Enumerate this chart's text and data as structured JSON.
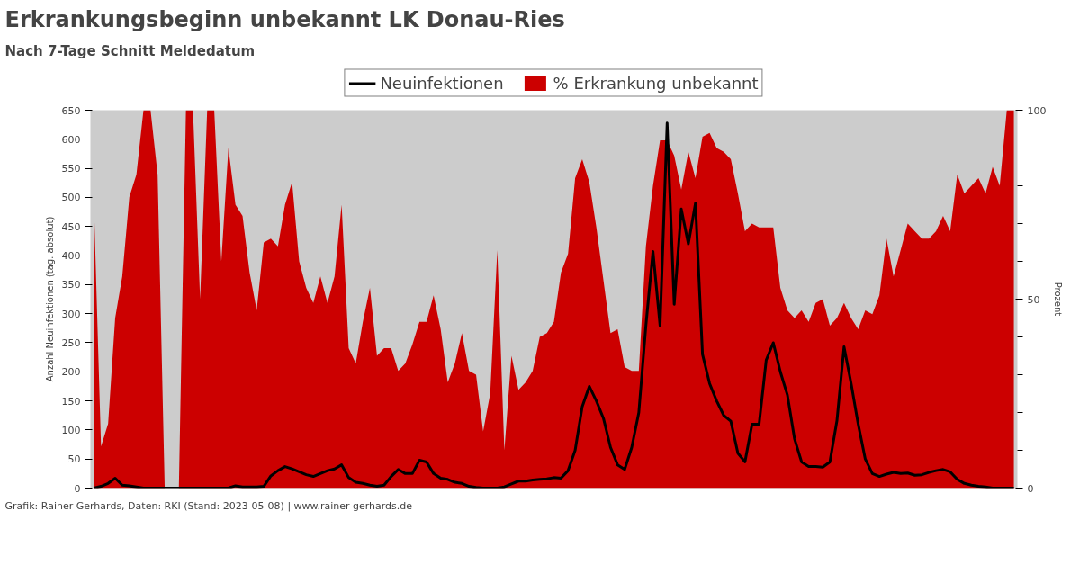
{
  "chart_data": {
    "type": "line",
    "title": "Erkrankungsbeginn unbekannt LK Donau-Ries",
    "subtitle": "Nach 7-Tage Schnitt Meldedatum",
    "ylabel": "Anzahl Neuinfektionen (tag. absolut)",
    "y2label": "Prozent",
    "annotations": [
      "Grafik: Rainer Gerhards, Daten: RKI (Stand: 2023-05-08) | www.rainer-gerhards.de"
    ],
    "categories": [
      null,
      null,
      null,
      null,
      null,
      null,
      null,
      null,
      null,
      null,
      null,
      null,
      null,
      null,
      null,
      null,
      null,
      null,
      null,
      null,
      null,
      null,
      null,
      null,
      null,
      null,
      null,
      null,
      null,
      null,
      null,
      null,
      null,
      null,
      null,
      null,
      null,
      null,
      null,
      null,
      null,
      null,
      null,
      null,
      null,
      null,
      null,
      null,
      null,
      null,
      null,
      null,
      null,
      null,
      null,
      null,
      null,
      null,
      null,
      null,
      null,
      null,
      null,
      null,
      null,
      null,
      null,
      null,
      null,
      null,
      null,
      null,
      null,
      null,
      null,
      null,
      null,
      null,
      null,
      null,
      null,
      null,
      null,
      null,
      null,
      null,
      null,
      null,
      null,
      null,
      null,
      null,
      null,
      null,
      null,
      null,
      null,
      null,
      null,
      null,
      null,
      null,
      null,
      null,
      null,
      null,
      null,
      null,
      null,
      null,
      null,
      null,
      null,
      null,
      null,
      null,
      null,
      null,
      null,
      null,
      null,
      null,
      null,
      null,
      null,
      null,
      null,
      null,
      null,
      null,
      null
    ],
    "series": [
      {
        "name": "% Erkrankung unbekannt",
        "type": "area",
        "axis": "y2",
        "color": "#cc0000",
        "values": [
          75,
          11,
          17,
          45,
          56,
          77,
          83,
          100,
          100,
          83,
          0,
          0,
          0,
          100,
          100,
          50,
          100,
          100,
          60,
          90,
          75,
          72,
          57,
          47,
          65,
          66,
          64,
          75,
          81,
          60,
          53,
          49,
          56,
          49,
          56,
          75,
          37,
          33,
          44,
          53,
          35,
          37,
          37,
          31,
          33,
          38,
          44,
          44,
          51,
          42,
          28,
          33,
          41,
          31,
          30,
          15,
          25,
          63,
          10,
          35,
          26,
          28,
          31,
          40,
          41,
          44,
          57,
          62,
          82,
          87,
          81,
          69,
          55,
          41,
          42,
          32,
          31,
          31,
          64,
          80,
          92,
          92,
          88,
          79,
          89,
          82,
          93,
          94,
          90,
          89,
          87,
          78,
          68,
          70,
          69,
          69,
          69,
          53,
          47,
          45,
          47,
          44,
          49,
          50,
          43,
          45,
          49,
          45,
          42,
          47,
          46,
          51,
          66,
          56,
          63,
          70,
          68,
          66,
          66,
          68,
          72,
          68,
          83,
          78,
          80,
          82,
          78,
          85,
          80,
          100,
          100
        ]
      },
      {
        "name": "Neuinfektionen",
        "type": "line",
        "color": "#000000",
        "values": [
          0,
          3,
          8,
          17,
          5,
          4,
          2,
          0,
          0,
          0,
          0,
          0,
          0,
          0,
          0,
          0,
          0,
          0,
          0,
          0,
          4,
          2,
          2,
          2,
          3,
          21,
          30,
          37,
          33,
          28,
          23,
          20,
          25,
          30,
          33,
          40,
          18,
          10,
          8,
          5,
          3,
          5,
          20,
          32,
          25,
          25,
          48,
          45,
          25,
          17,
          15,
          10,
          8,
          3,
          1,
          0,
          0,
          0,
          2,
          7,
          12,
          12,
          14,
          15,
          16,
          18,
          17,
          30,
          65,
          140,
          175,
          150,
          120,
          70,
          40,
          32,
          70,
          130,
          280,
          407,
          279,
          628,
          316,
          480,
          420,
          490,
          230,
          180,
          150,
          125,
          115,
          60,
          45,
          110,
          110,
          220,
          250,
          200,
          160,
          85,
          45,
          37,
          37,
          36,
          45,
          116,
          243,
          180,
          110,
          50,
          25,
          20,
          24,
          27,
          25,
          26,
          22,
          23,
          27,
          30,
          32,
          28,
          15,
          8,
          5,
          3,
          2,
          0,
          0,
          0,
          0
        ]
      }
    ],
    "ylim": [
      0,
      650
    ],
    "yticks": [
      0,
      50,
      100,
      150,
      200,
      250,
      300,
      350,
      400,
      450,
      500,
      550,
      600,
      650
    ],
    "y2lim": [
      0,
      100
    ],
    "y2ticks": [
      0,
      {
        "value": 10,
        "label": null
      },
      {
        "value": 20,
        "label": null
      },
      {
        "value": 30,
        "label": null
      },
      {
        "value": 40,
        "label": null
      },
      50,
      {
        "value": 60,
        "label": null
      },
      {
        "value": 70,
        "label": null
      },
      {
        "value": 80,
        "label": null
      },
      {
        "value": 90,
        "label": null
      },
      100
    ],
    "legend": "top",
    "grid": false
  }
}
